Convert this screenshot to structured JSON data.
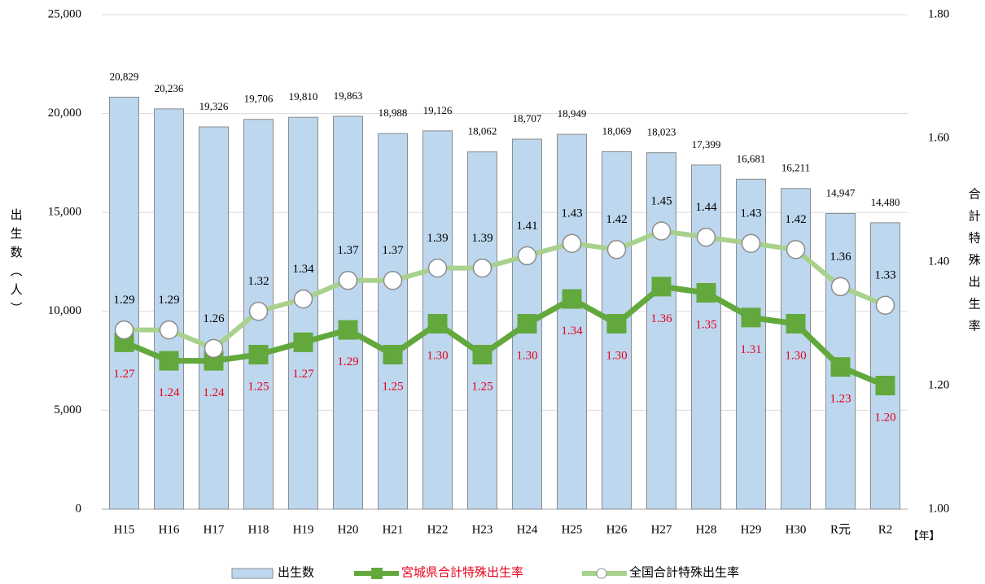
{
  "chart_data": {
    "type": "bar_line",
    "categories": [
      "H15",
      "H16",
      "H17",
      "H18",
      "H19",
      "H20",
      "H21",
      "H22",
      "H23",
      "H24",
      "H25",
      "H26",
      "H27",
      "H28",
      "H29",
      "H30",
      "R元",
      "R2"
    ],
    "xlabel": "【年】",
    "ylabel": "出生数（人）",
    "y2label": "合計特殊出生率",
    "ylim": [
      0,
      25000
    ],
    "yticks": [
      0,
      {
        "value": 5000,
        "label": "5,000"
      },
      {
        "value": 10000,
        "label": "10,000"
      },
      {
        "value": 15000,
        "label": "15,000"
      },
      {
        "value": 20000,
        "label": "20,000"
      },
      {
        "value": 25000,
        "label": "25,000"
      }
    ],
    "y2lim": [
      1.0,
      1.8
    ],
    "y2ticks": [
      {
        "value": 1.0,
        "label": "1.00"
      },
      {
        "value": 1.2,
        "label": "1.20"
      },
      {
        "value": 1.4,
        "label": "1.40"
      },
      {
        "value": 1.6,
        "label": "1.60"
      },
      {
        "value": 1.8,
        "label": "1.80"
      }
    ],
    "grid": true,
    "legend": "bottom",
    "series": [
      {
        "name": "出生数",
        "type": "bar",
        "color": "#bdd7ee",
        "axis": "y",
        "values": [
          20829,
          20236,
          19326,
          19706,
          19810,
          19863,
          18988,
          19126,
          18062,
          18707,
          18949,
          18069,
          18023,
          17399,
          16681,
          16211,
          14947,
          14480
        ],
        "value_labels": [
          "20,829",
          "20,236",
          "19,326",
          "19,706",
          "19,810",
          "19,863",
          "18,988",
          "19,126",
          "18,062",
          "18,707",
          "18,949",
          "18,069",
          "18,023",
          "17,399",
          "16,681",
          "16,211",
          "14,947",
          "14,480"
        ]
      },
      {
        "name": "宮城県合計特殊出生率",
        "type": "line",
        "color": "#62a83c",
        "label_color": "#e8001c",
        "marker": "square",
        "axis": "y2",
        "values": [
          1.27,
          1.24,
          1.24,
          1.25,
          1.27,
          1.29,
          1.25,
          1.3,
          1.25,
          1.3,
          1.34,
          1.3,
          1.36,
          1.35,
          1.31,
          1.3,
          1.23,
          1.2
        ],
        "value_labels": [
          "1.27",
          "1.24",
          "1.24",
          "1.25",
          "1.27",
          "1.29",
          "1.25",
          "1.30",
          "1.25",
          "1.30",
          "1.34",
          "1.30",
          "1.36",
          "1.35",
          "1.31",
          "1.30",
          "1.23",
          "1.20"
        ]
      },
      {
        "name": "全国合計特殊出生率",
        "type": "line",
        "color": "#a9d18e",
        "label_color": "#000000",
        "marker": "circle",
        "axis": "y2",
        "values": [
          1.29,
          1.29,
          1.26,
          1.32,
          1.34,
          1.37,
          1.37,
          1.39,
          1.39,
          1.41,
          1.43,
          1.42,
          1.45,
          1.44,
          1.43,
          1.42,
          1.36,
          1.33
        ]
      }
    ]
  }
}
